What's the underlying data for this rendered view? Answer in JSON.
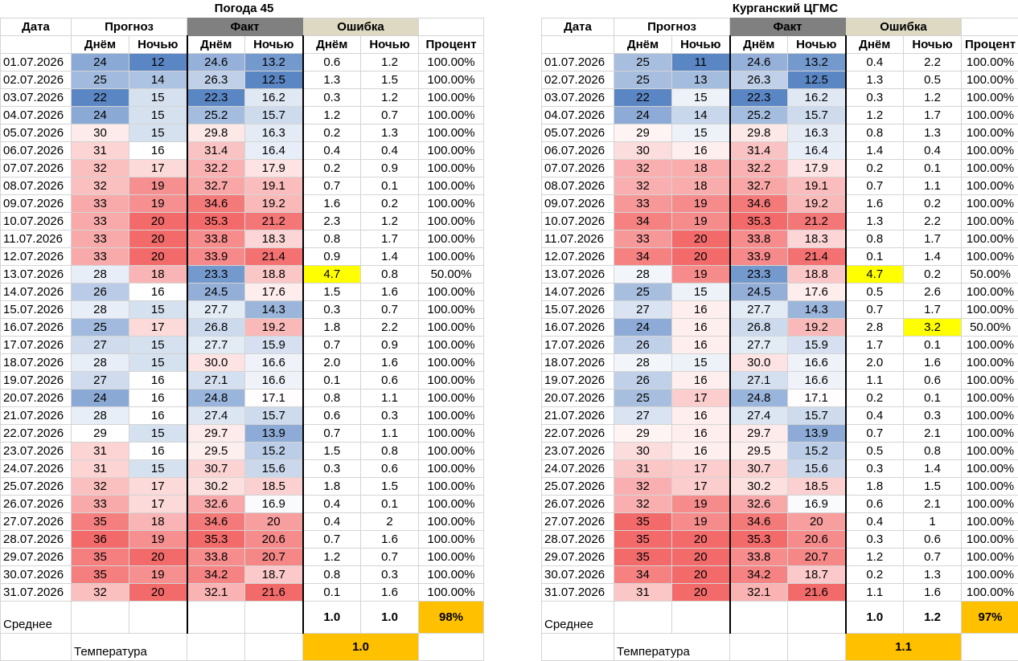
{
  "colors": {
    "low": "#5b86c4",
    "mid": "#ffffff",
    "high": "#f36a6a",
    "error_highlight": "#ffff00",
    "summary": "#ffc000",
    "fakt_header": "#808080",
    "error_header": "#ddd9c3"
  },
  "panels": [
    {
      "title": "Погода 45",
      "headers": {
        "date": "Дата",
        "forecast": "Прогноз",
        "fact": "Факт",
        "error": "Ошибка",
        "day": "Днём",
        "night": "Ночью",
        "percent": "Процент"
      },
      "rows": [
        {
          "date": "01.07.2026",
          "fd": "24",
          "fn": "12",
          "ad": "24.6",
          "an": "13.2",
          "ed": "0.6",
          "en": "1.2",
          "pct": "100.00%"
        },
        {
          "date": "02.07.2026",
          "fd": "25",
          "fn": "14",
          "ad": "26.3",
          "an": "12.5",
          "ed": "1.3",
          "en": "1.5",
          "pct": "100.00%"
        },
        {
          "date": "03.07.2026",
          "fd": "22",
          "fn": "15",
          "ad": "22.3",
          "an": "16.2",
          "ed": "0.3",
          "en": "1.2",
          "pct": "100.00%"
        },
        {
          "date": "04.07.2026",
          "fd": "24",
          "fn": "15",
          "ad": "25.2",
          "an": "15.7",
          "ed": "1.2",
          "en": "0.7",
          "pct": "100.00%"
        },
        {
          "date": "05.07.2026",
          "fd": "30",
          "fn": "15",
          "ad": "29.8",
          "an": "16.3",
          "ed": "0.2",
          "en": "1.3",
          "pct": "100.00%"
        },
        {
          "date": "06.07.2026",
          "fd": "31",
          "fn": "16",
          "ad": "31.4",
          "an": "16.4",
          "ed": "0.4",
          "en": "0.4",
          "pct": "100.00%"
        },
        {
          "date": "07.07.2026",
          "fd": "32",
          "fn": "17",
          "ad": "32.2",
          "an": "17.9",
          "ed": "0.2",
          "en": "0.9",
          "pct": "100.00%"
        },
        {
          "date": "08.07.2026",
          "fd": "32",
          "fn": "19",
          "ad": "32.7",
          "an": "19.1",
          "ed": "0.7",
          "en": "0.1",
          "pct": "100.00%"
        },
        {
          "date": "09.07.2026",
          "fd": "33",
          "fn": "19",
          "ad": "34.6",
          "an": "19.2",
          "ed": "1.6",
          "en": "0.2",
          "pct": "100.00%"
        },
        {
          "date": "10.07.2026",
          "fd": "33",
          "fn": "20",
          "ad": "35.3",
          "an": "21.2",
          "ed": "2.3",
          "en": "1.2",
          "pct": "100.00%"
        },
        {
          "date": "11.07.2026",
          "fd": "33",
          "fn": "20",
          "ad": "33.8",
          "an": "18.3",
          "ed": "0.8",
          "en": "1.7",
          "pct": "100.00%"
        },
        {
          "date": "12.07.2026",
          "fd": "33",
          "fn": "20",
          "ad": "33.9",
          "an": "21.4",
          "ed": "0.9",
          "en": "1.4",
          "pct": "100.00%"
        },
        {
          "date": "13.07.2026",
          "fd": "28",
          "fn": "18",
          "ad": "23.3",
          "an": "18.8",
          "ed": "4.7",
          "en": "0.8",
          "pct": "50.00%",
          "hd": true
        },
        {
          "date": "14.07.2026",
          "fd": "26",
          "fn": "16",
          "ad": "24.5",
          "an": "17.6",
          "ed": "1.5",
          "en": "1.6",
          "pct": "100.00%"
        },
        {
          "date": "15.07.2026",
          "fd": "28",
          "fn": "15",
          "ad": "27.7",
          "an": "14.3",
          "ed": "0.3",
          "en": "0.7",
          "pct": "100.00%"
        },
        {
          "date": "16.07.2026",
          "fd": "25",
          "fn": "17",
          "ad": "26.8",
          "an": "19.2",
          "ed": "1.8",
          "en": "2.2",
          "pct": "100.00%"
        },
        {
          "date": "17.07.2026",
          "fd": "27",
          "fn": "15",
          "ad": "27.7",
          "an": "15.9",
          "ed": "0.7",
          "en": "0.9",
          "pct": "100.00%"
        },
        {
          "date": "18.07.2026",
          "fd": "28",
          "fn": "15",
          "ad": "30.0",
          "an": "16.6",
          "ed": "2.0",
          "en": "1.6",
          "pct": "100.00%"
        },
        {
          "date": "19.07.2026",
          "fd": "27",
          "fn": "16",
          "ad": "27.1",
          "an": "16.6",
          "ed": "0.1",
          "en": "0.6",
          "pct": "100.00%"
        },
        {
          "date": "20.07.2026",
          "fd": "24",
          "fn": "16",
          "ad": "24.8",
          "an": "17.1",
          "ed": "0.8",
          "en": "1.1",
          "pct": "100.00%"
        },
        {
          "date": "21.07.2026",
          "fd": "28",
          "fn": "16",
          "ad": "27.4",
          "an": "15.7",
          "ed": "0.6",
          "en": "0.3",
          "pct": "100.00%"
        },
        {
          "date": "22.07.2026",
          "fd": "29",
          "fn": "15",
          "ad": "29.7",
          "an": "13.9",
          "ed": "0.7",
          "en": "1.1",
          "pct": "100.00%"
        },
        {
          "date": "23.07.2026",
          "fd": "31",
          "fn": "16",
          "ad": "29.5",
          "an": "15.2",
          "ed": "1.5",
          "en": "0.8",
          "pct": "100.00%"
        },
        {
          "date": "24.07.2026",
          "fd": "31",
          "fn": "15",
          "ad": "30.7",
          "an": "15.6",
          "ed": "0.3",
          "en": "0.6",
          "pct": "100.00%"
        },
        {
          "date": "25.07.2026",
          "fd": "32",
          "fn": "17",
          "ad": "30.2",
          "an": "18.5",
          "ed": "1.8",
          "en": "1.5",
          "pct": "100.00%"
        },
        {
          "date": "26.07.2026",
          "fd": "33",
          "fn": "17",
          "ad": "32.6",
          "an": "16.9",
          "ed": "0.4",
          "en": "0.1",
          "pct": "100.00%"
        },
        {
          "date": "27.07.2026",
          "fd": "35",
          "fn": "18",
          "ad": "34.6",
          "an": "20",
          "ed": "0.4",
          "en": "2",
          "pct": "100.00%"
        },
        {
          "date": "28.07.2026",
          "fd": "36",
          "fn": "19",
          "ad": "35.3",
          "an": "20.6",
          "ed": "0.7",
          "en": "1.6",
          "pct": "100.00%"
        },
        {
          "date": "29.07.2026",
          "fd": "35",
          "fn": "20",
          "ad": "33.8",
          "an": "20.7",
          "ed": "1.2",
          "en": "0.7",
          "pct": "100.00%"
        },
        {
          "date": "30.07.2026",
          "fd": "35",
          "fn": "19",
          "ad": "34.2",
          "an": "18.7",
          "ed": "0.8",
          "en": "0.3",
          "pct": "100.00%"
        },
        {
          "date": "31.07.2026",
          "fd": "32",
          "fn": "20",
          "ad": "32.1",
          "an": "21.6",
          "ed": "0.1",
          "en": "1.6",
          "pct": "100.00%"
        }
      ],
      "avg_label": "Среднее",
      "avg_day": "1.0",
      "avg_night": "1.0",
      "avg_pct": "98%",
      "temp_label": "Температура",
      "temp_value": "1.0"
    },
    {
      "title": "Курганский ЦГМС",
      "headers": {
        "date": "Дата",
        "forecast": "Прогноз",
        "fact": "Факт",
        "error": "Ошибка",
        "day": "Днём",
        "night": "Ночью",
        "percent": "Процент"
      },
      "rows": [
        {
          "date": "01.07.2026",
          "fd": "25",
          "fn": "11",
          "ad": "24.6",
          "an": "13.2",
          "ed": "0.4",
          "en": "2.2",
          "pct": "100.00%"
        },
        {
          "date": "02.07.2026",
          "fd": "25",
          "fn": "13",
          "ad": "26.3",
          "an": "12.5",
          "ed": "1.3",
          "en": "0.5",
          "pct": "100.00%"
        },
        {
          "date": "03.07.2026",
          "fd": "22",
          "fn": "15",
          "ad": "22.3",
          "an": "16.2",
          "ed": "0.3",
          "en": "1.2",
          "pct": "100.00%"
        },
        {
          "date": "04.07.2026",
          "fd": "24",
          "fn": "14",
          "ad": "25.2",
          "an": "15.7",
          "ed": "1.2",
          "en": "1.7",
          "pct": "100.00%"
        },
        {
          "date": "05.07.2026",
          "fd": "29",
          "fn": "15",
          "ad": "29.8",
          "an": "16.3",
          "ed": "0.8",
          "en": "1.3",
          "pct": "100.00%"
        },
        {
          "date": "06.07.2026",
          "fd": "30",
          "fn": "16",
          "ad": "31.4",
          "an": "16.4",
          "ed": "1.4",
          "en": "0.4",
          "pct": "100.00%"
        },
        {
          "date": "07.07.2026",
          "fd": "32",
          "fn": "18",
          "ad": "32.2",
          "an": "17.9",
          "ed": "0.2",
          "en": "0.1",
          "pct": "100.00%"
        },
        {
          "date": "08.07.2026",
          "fd": "32",
          "fn": "18",
          "ad": "32.7",
          "an": "19.1",
          "ed": "0.7",
          "en": "1.1",
          "pct": "100.00%"
        },
        {
          "date": "09.07.2026",
          "fd": "33",
          "fn": "19",
          "ad": "34.6",
          "an": "19.2",
          "ed": "1.6",
          "en": "0.2",
          "pct": "100.00%"
        },
        {
          "date": "10.07.2026",
          "fd": "34",
          "fn": "19",
          "ad": "35.3",
          "an": "21.2",
          "ed": "1.3",
          "en": "2.2",
          "pct": "100.00%"
        },
        {
          "date": "11.07.2026",
          "fd": "33",
          "fn": "20",
          "ad": "33.8",
          "an": "18.3",
          "ed": "0.8",
          "en": "1.7",
          "pct": "100.00%"
        },
        {
          "date": "12.07.2026",
          "fd": "34",
          "fn": "20",
          "ad": "33.9",
          "an": "21.4",
          "ed": "0.1",
          "en": "1.4",
          "pct": "100.00%"
        },
        {
          "date": "13.07.2026",
          "fd": "28",
          "fn": "19",
          "ad": "23.3",
          "an": "18.8",
          "ed": "4.7",
          "en": "0.2",
          "pct": "50.00%",
          "hd": true
        },
        {
          "date": "14.07.2026",
          "fd": "25",
          "fn": "15",
          "ad": "24.5",
          "an": "17.6",
          "ed": "0.5",
          "en": "2.6",
          "pct": "100.00%"
        },
        {
          "date": "15.07.2026",
          "fd": "27",
          "fn": "16",
          "ad": "27.7",
          "an": "14.3",
          "ed": "0.7",
          "en": "1.7",
          "pct": "100.00%"
        },
        {
          "date": "16.07.2026",
          "fd": "24",
          "fn": "16",
          "ad": "26.8",
          "an": "19.2",
          "ed": "2.8",
          "en": "3.2",
          "pct": "50.00%",
          "hn": true
        },
        {
          "date": "17.07.2026",
          "fd": "26",
          "fn": "16",
          "ad": "27.7",
          "an": "15.9",
          "ed": "1.7",
          "en": "0.1",
          "pct": "100.00%"
        },
        {
          "date": "18.07.2026",
          "fd": "28",
          "fn": "15",
          "ad": "30.0",
          "an": "16.6",
          "ed": "2.0",
          "en": "1.6",
          "pct": "100.00%"
        },
        {
          "date": "19.07.2026",
          "fd": "26",
          "fn": "16",
          "ad": "27.1",
          "an": "16.6",
          "ed": "1.1",
          "en": "0.6",
          "pct": "100.00%"
        },
        {
          "date": "20.07.2026",
          "fd": "25",
          "fn": "17",
          "ad": "24.8",
          "an": "17.1",
          "ed": "0.2",
          "en": "0.1",
          "pct": "100.00%"
        },
        {
          "date": "21.07.2026",
          "fd": "27",
          "fn": "16",
          "ad": "27.4",
          "an": "15.7",
          "ed": "0.4",
          "en": "0.3",
          "pct": "100.00%"
        },
        {
          "date": "22.07.2026",
          "fd": "29",
          "fn": "16",
          "ad": "29.7",
          "an": "13.9",
          "ed": "0.7",
          "en": "2.1",
          "pct": "100.00%"
        },
        {
          "date": "23.07.2026",
          "fd": "30",
          "fn": "16",
          "ad": "29.5",
          "an": "15.2",
          "ed": "0.5",
          "en": "0.8",
          "pct": "100.00%"
        },
        {
          "date": "24.07.2026",
          "fd": "31",
          "fn": "17",
          "ad": "30.7",
          "an": "15.6",
          "ed": "0.3",
          "en": "1.4",
          "pct": "100.00%"
        },
        {
          "date": "25.07.2026",
          "fd": "32",
          "fn": "17",
          "ad": "30.2",
          "an": "18.5",
          "ed": "1.8",
          "en": "1.5",
          "pct": "100.00%"
        },
        {
          "date": "26.07.2026",
          "fd": "32",
          "fn": "19",
          "ad": "32.6",
          "an": "16.9",
          "ed": "0.6",
          "en": "2.1",
          "pct": "100.00%"
        },
        {
          "date": "27.07.2026",
          "fd": "35",
          "fn": "19",
          "ad": "34.6",
          "an": "20",
          "ed": "0.4",
          "en": "1",
          "pct": "100.00%"
        },
        {
          "date": "28.07.2026",
          "fd": "35",
          "fn": "20",
          "ad": "35.3",
          "an": "20.6",
          "ed": "0.3",
          "en": "0.6",
          "pct": "100.00%"
        },
        {
          "date": "29.07.2026",
          "fd": "35",
          "fn": "20",
          "ad": "33.8",
          "an": "20.7",
          "ed": "1.2",
          "en": "0.7",
          "pct": "100.00%"
        },
        {
          "date": "30.07.2026",
          "fd": "34",
          "fn": "20",
          "ad": "34.2",
          "an": "18.7",
          "ed": "0.2",
          "en": "1.3",
          "pct": "100.00%"
        },
        {
          "date": "31.07.2026",
          "fd": "31",
          "fn": "20",
          "ad": "32.1",
          "an": "21.6",
          "ed": "1.1",
          "en": "1.6",
          "pct": "100.00%"
        }
      ],
      "avg_label": "Среднее",
      "avg_day": "1.0",
      "avg_night": "1.2",
      "avg_pct": "97%",
      "temp_label": "Температура",
      "temp_value": "1.1"
    }
  ]
}
